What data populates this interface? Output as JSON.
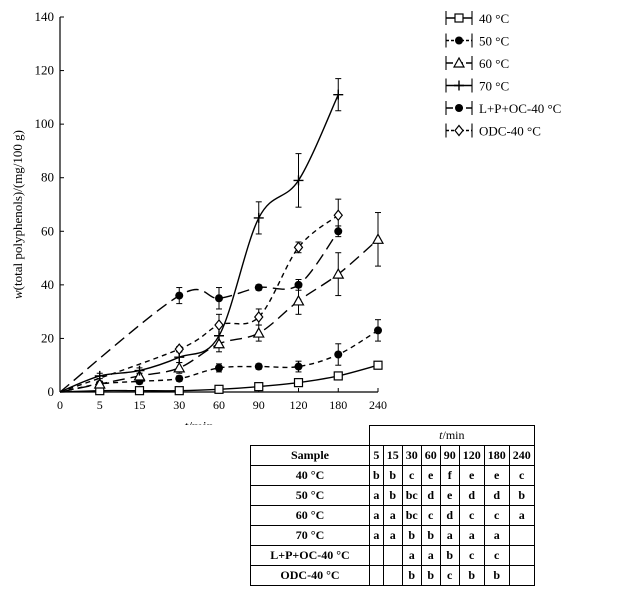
{
  "chart_data": {
    "type": "line",
    "xlabel_italic": "t",
    "xlabel_rest": "/min",
    "ylabel_italic": "w",
    "ylabel_rest": "(total polyphenols)/(mg/100 g)",
    "categories": [
      "0",
      "5",
      "15",
      "30",
      "60",
      "90",
      "120",
      "180",
      "240"
    ],
    "x": [
      0,
      5,
      15,
      30,
      60,
      90,
      120,
      180,
      240
    ],
    "ylim": [
      0,
      140
    ],
    "yticks": [
      "0",
      "20",
      "40",
      "60",
      "80",
      "100",
      "120",
      "140"
    ],
    "legend_position": "top-right",
    "series": [
      {
        "name": "40 °C",
        "marker": "square",
        "line": "solid",
        "values": [
          0,
          0.5,
          0.5,
          0.5,
          1,
          2,
          3.5,
          6,
          10
        ],
        "errors": [
          0,
          0,
          0,
          0,
          0.5,
          0.5,
          1,
          1,
          1
        ]
      },
      {
        "name": "50 °C",
        "marker": "filled-circle",
        "line": "short-dash",
        "values": [
          0,
          3,
          4,
          5,
          9,
          9.5,
          9.5,
          14,
          23
        ],
        "errors": [
          0,
          1,
          1,
          1,
          1.5,
          1,
          2,
          4,
          4
        ]
      },
      {
        "name": "60 °C",
        "marker": "triangle",
        "line": "long-dash",
        "values": [
          0,
          3,
          6,
          9,
          18,
          22,
          34,
          44,
          57
        ],
        "errors": [
          0,
          1,
          1,
          2,
          3,
          3,
          5,
          8,
          10
        ]
      },
      {
        "name": "70 °C",
        "marker": "plus",
        "line": "solid",
        "values": [
          0,
          6,
          8,
          13,
          21,
          65,
          79,
          111,
          null
        ],
        "errors": [
          0,
          1,
          1,
          2,
          4,
          6,
          10,
          6,
          0
        ]
      },
      {
        "name": "L+P+OC-40 °C",
        "marker": "filled-circle",
        "line": "long-dash",
        "values": [
          0,
          null,
          null,
          36,
          35,
          39,
          40,
          60,
          null
        ],
        "errors": [
          0,
          0,
          0,
          3,
          4,
          1,
          2,
          2,
          0
        ]
      },
      {
        "name": "ODC-40 °C",
        "marker": "diamond",
        "line": "short-dash",
        "values": [
          0,
          null,
          null,
          16,
          25,
          28,
          54,
          66,
          null
        ],
        "errors": [
          0,
          0,
          0,
          1,
          4,
          3,
          2,
          6,
          0
        ]
      }
    ]
  },
  "table": {
    "t_header_italic": "t",
    "t_header_rest": "/min",
    "sample_header": "Sample",
    "columns": [
      "5",
      "15",
      "30",
      "60",
      "90",
      "120",
      "180",
      "240"
    ],
    "rows": [
      {
        "label": "40 °C",
        "cells": [
          "b",
          "b",
          "c",
          "e",
          "f",
          "e",
          "e",
          "c"
        ]
      },
      {
        "label": "50 °C",
        "cells": [
          "a",
          "b",
          "bc",
          "d",
          "e",
          "d",
          "d",
          "b"
        ]
      },
      {
        "label": "60 °C",
        "cells": [
          "a",
          "a",
          "bc",
          "c",
          "d",
          "c",
          "c",
          "a"
        ]
      },
      {
        "label": "70 °C",
        "cells": [
          "a",
          "a",
          "b",
          "b",
          "a",
          "a",
          "a",
          ""
        ]
      },
      {
        "label": "L+P+OC-40 °C",
        "cells": [
          "",
          "",
          "a",
          "a",
          "b",
          "c",
          "c",
          ""
        ]
      },
      {
        "label": "ODC-40 °C",
        "cells": [
          "",
          "",
          "b",
          "b",
          "c",
          "b",
          "b",
          ""
        ]
      }
    ]
  }
}
